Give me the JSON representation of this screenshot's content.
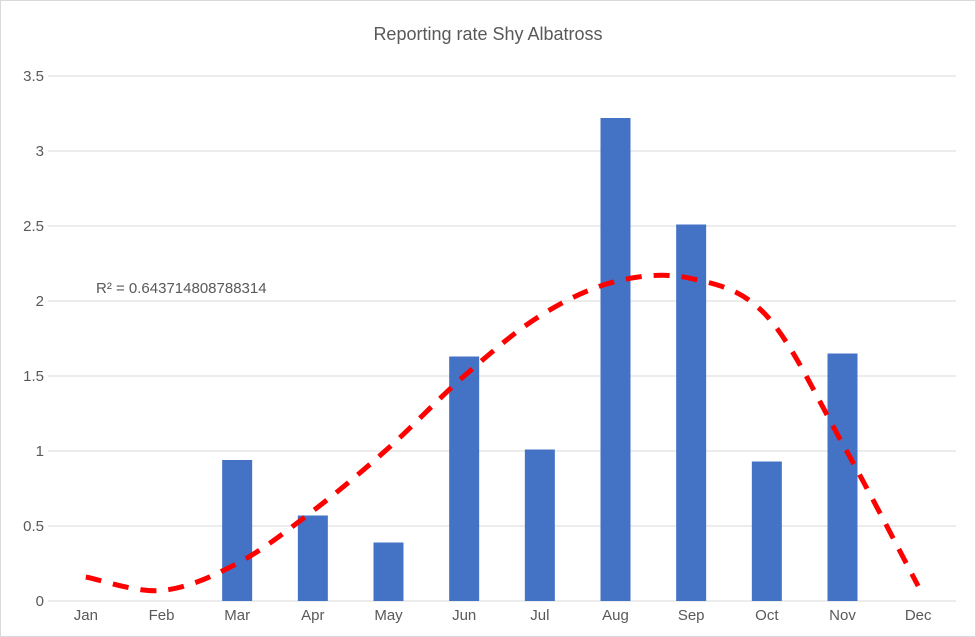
{
  "chart_data": {
    "type": "bar",
    "title": "Reporting rate Shy Albatross",
    "xlabel": "",
    "ylabel": "",
    "categories": [
      "Jan",
      "Feb",
      "Mar",
      "Apr",
      "May",
      "Jun",
      "Jul",
      "Aug",
      "Sep",
      "Oct",
      "Nov",
      "Dec"
    ],
    "series": [
      {
        "name": "Reporting rate",
        "color": "#4472c4",
        "values": [
          0,
          0,
          0.94,
          0.57,
          0.39,
          1.63,
          1.01,
          3.22,
          2.51,
          0.93,
          1.65,
          0
        ]
      }
    ],
    "trendline": {
      "type": "polynomial",
      "style": "dashed",
      "color": "#ff0000",
      "values": [
        0.16,
        0.07,
        0.25,
        0.6,
        1.02,
        1.5,
        1.9,
        2.13,
        2.15,
        1.9,
        1.05,
        0.1
      ],
      "r_squared_label": "R² = 0.643714808788314"
    },
    "ylim": [
      0,
      3.5
    ],
    "yticks": [
      "0",
      "0.5",
      "1",
      "1.5",
      "2",
      "2.5",
      "3",
      "3.5"
    ],
    "grid": true,
    "legend": "none"
  }
}
